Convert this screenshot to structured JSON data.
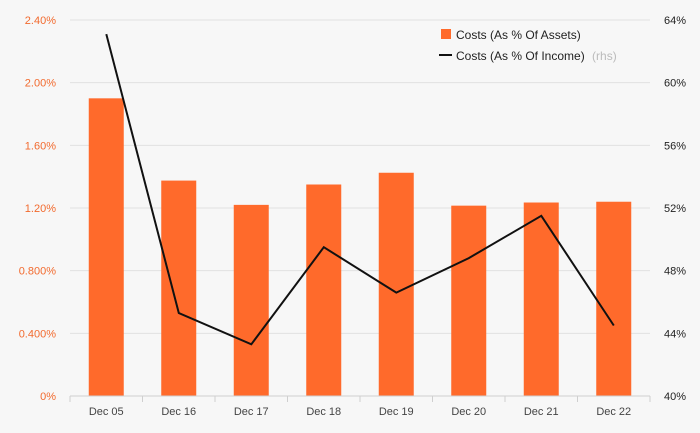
{
  "chart_data": {
    "type": "bar",
    "categories": [
      "Dec 05",
      "Dec 16",
      "Dec 17",
      "Dec 18",
      "Dec 19",
      "Dec 20",
      "Dec 21",
      "Dec 22"
    ],
    "series": [
      {
        "name": "Costs (As % Of Assets)",
        "type": "bar",
        "axis": "left",
        "color": "#ff6a2b",
        "values": [
          1.9,
          1.375,
          1.22,
          1.35,
          1.425,
          1.215,
          1.235,
          1.24
        ]
      },
      {
        "name": "Costs (As % Of Income)",
        "name_suffix": "(rhs)",
        "type": "line",
        "axis": "right",
        "color": "#111111",
        "values": [
          63.1,
          45.3,
          43.3,
          49.5,
          46.6,
          48.8,
          51.5,
          44.5
        ]
      }
    ],
    "y_left": {
      "ylim": [
        0,
        2.4
      ],
      "ticks": [
        0,
        0.4,
        0.8,
        1.2,
        1.6,
        2.0,
        2.4
      ],
      "tick_labels": [
        "0%",
        "0.400%",
        "0.800%",
        "1.20%",
        "1.60%",
        "2.00%",
        "2.40%"
      ],
      "color": "#f26a2e"
    },
    "y_right": {
      "ylim": [
        40,
        64
      ],
      "ticks": [
        40,
        44,
        48,
        52,
        56,
        60,
        64
      ],
      "tick_labels": [
        "40%",
        "44%",
        "48%",
        "52%",
        "56%",
        "60%",
        "64%"
      ]
    },
    "title": "",
    "xlabel": "",
    "grid": true,
    "legend_position": "top-right"
  }
}
